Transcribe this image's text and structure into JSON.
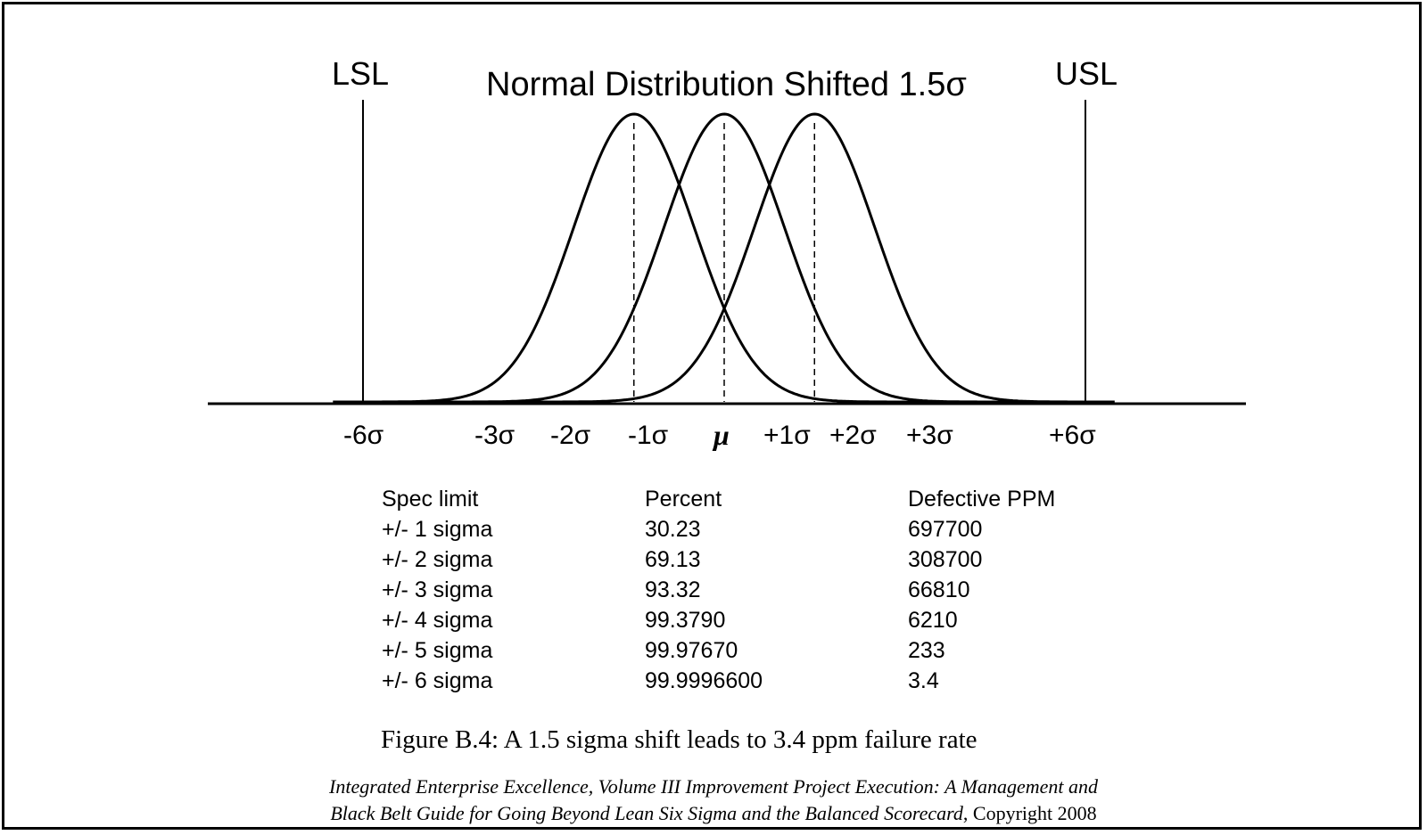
{
  "diagram": {
    "title": "Normal Distribution Shifted 1.5σ",
    "lsl_label": "LSL",
    "usl_label": "USL",
    "sigma_ticks": [
      "-6σ",
      "-3σ",
      "-2σ",
      "-1σ",
      "μ",
      "+1σ",
      "+2σ",
      "+3σ",
      "+6σ"
    ],
    "curve_means_sigma": [
      -1.5,
      0,
      1.5
    ],
    "line_color": "#000000"
  },
  "table": {
    "headers": [
      "Spec limit",
      "Percent",
      "Defective PPM"
    ],
    "rows": [
      [
        "+/- 1 sigma",
        "30.23",
        "697700"
      ],
      [
        "+/- 2 sigma",
        "69.13",
        "308700"
      ],
      [
        "+/- 3 sigma",
        "93.32",
        "66810"
      ],
      [
        "+/- 4 sigma",
        "99.3790",
        "6210"
      ],
      [
        "+/- 5 sigma",
        "99.97670",
        "233"
      ],
      [
        "+/- 6 sigma",
        "99.9996600",
        "3.4"
      ]
    ]
  },
  "caption": "Figure B.4: A 1.5 sigma shift leads to 3.4 ppm failure rate",
  "citation": {
    "line1_italic": "Integrated Enterprise Excellence, Volume III Improvement Project Execution: A Management and",
    "line2_italic": "Black Belt Guide for Going Beyond Lean Six Sigma and the Balanced Scorecard",
    "line2_plain": ", Copyright 2008"
  }
}
